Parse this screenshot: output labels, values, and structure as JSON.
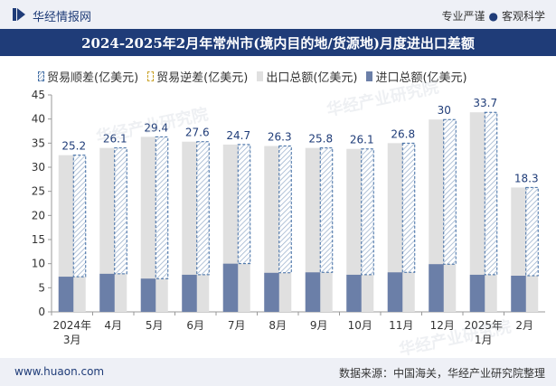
{
  "header": {
    "brand": "华经情报网",
    "tagline_left": "专业严谨",
    "tagline_sep": "●",
    "tagline_right": "客观科学"
  },
  "watermark": "华经产业研究院",
  "footer": {
    "website": "www.huaon.com",
    "source": "数据来源：中国海关，华经产业研究院整理"
  },
  "legend": [
    {
      "label": "贸易顺差(亿美元)"
    },
    {
      "label": "贸易逆差(亿美元)"
    },
    {
      "label": "出口总额(亿美元)"
    },
    {
      "label": "进口总额(亿美元)"
    }
  ],
  "colors": {
    "export": "#e0e0e0",
    "import": "#6b7fa8",
    "surplus_border": "#3e6ba3",
    "surplus_hatch": "#9ab0cc",
    "label": "#1f3c78",
    "title_bg": "#1f3c78"
  },
  "chart_data": {
    "type": "bar",
    "title": "2024-2025年2月年常州市(境内目的地/货源地)月度进出口差额",
    "categories": [
      [
        "2024年",
        "3月"
      ],
      [
        "4月"
      ],
      [
        "5月"
      ],
      [
        "6月"
      ],
      [
        "7月"
      ],
      [
        "8月"
      ],
      [
        "9月"
      ],
      [
        "10月"
      ],
      [
        "11月"
      ],
      [
        "12月"
      ],
      [
        "2025年",
        "1月"
      ],
      [
        "2月"
      ]
    ],
    "series": [
      {
        "name": "出口总额(亿美元)",
        "values": [
          32.5,
          34.0,
          36.3,
          35.3,
          34.7,
          34.4,
          34.0,
          33.8,
          35.0,
          39.9,
          41.4,
          25.8
        ]
      },
      {
        "name": "进口总额(亿美元)",
        "values": [
          7.3,
          7.9,
          6.9,
          7.7,
          10.0,
          8.1,
          8.2,
          7.7,
          8.2,
          9.9,
          7.7,
          7.5
        ]
      },
      {
        "name": "贸易顺差(亿美元)",
        "values": [
          25.2,
          26.1,
          29.4,
          27.6,
          24.7,
          26.3,
          25.8,
          26.1,
          26.8,
          30,
          33.7,
          18.3
        ]
      },
      {
        "name": "贸易逆差(亿美元)",
        "values": [
          0,
          0,
          0,
          0,
          0,
          0,
          0,
          0,
          0,
          0,
          0,
          0
        ]
      }
    ],
    "ylim": [
      0,
      45
    ],
    "yticks": [
      0,
      5,
      10,
      15,
      20,
      25,
      30,
      35,
      40,
      45
    ],
    "grid": false,
    "legend_position": "top-left"
  }
}
